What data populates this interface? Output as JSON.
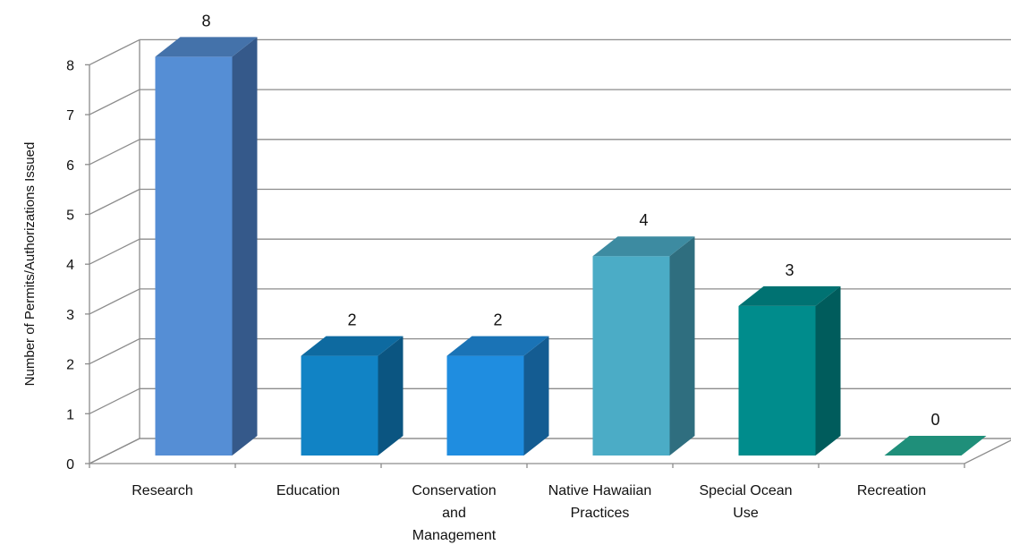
{
  "chart_data": {
    "type": "bar",
    "title": "",
    "xlabel": "",
    "ylabel": "Number of Permits/Authorizations Issued",
    "ylim": [
      0,
      8
    ],
    "yticks": [
      0,
      1,
      2,
      3,
      4,
      5,
      6,
      7,
      8
    ],
    "grid": true,
    "legend": "none",
    "style": "3d-column",
    "categories": [
      [
        "Research"
      ],
      [
        "Education"
      ],
      [
        "Conservation",
        "and",
        "Management"
      ],
      [
        "Native Hawaiian",
        "Practices"
      ],
      [
        "Special Ocean",
        "Use"
      ],
      [
        "Recreation"
      ]
    ],
    "values": [
      8,
      2,
      2,
      4,
      3,
      0
    ],
    "colors": [
      {
        "front": "#558ed5",
        "side": "#35598a",
        "top": "#4472aa"
      },
      {
        "front": "#1183c5",
        "side": "#0b5581",
        "top": "#0e6aa0"
      },
      {
        "front": "#1f8de0",
        "side": "#145c92",
        "top": "#1a73b6"
      },
      {
        "front": "#4bacc6",
        "side": "#2f6e7f",
        "top": "#3d8ba1"
      },
      {
        "front": "#008c8c",
        "side": "#005c5c",
        "top": "#007272"
      },
      {
        "front": "#1f8f7a",
        "side": "#145d50",
        "top": "#1f8f7a"
      }
    ]
  }
}
